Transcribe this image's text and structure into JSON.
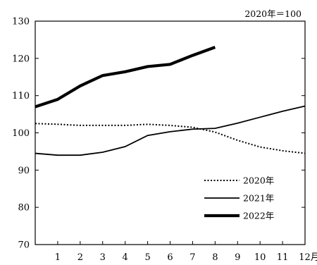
{
  "chart_data": {
    "type": "line",
    "unit_note": "2020年＝100",
    "x": [
      1,
      2,
      3,
      4,
      5,
      6,
      7,
      8,
      9,
      10,
      11,
      12
    ],
    "x_tick_labels": [
      "1",
      "2",
      "3",
      "4",
      "5",
      "6",
      "7",
      "8",
      "9",
      "10",
      "11",
      "12月"
    ],
    "xlim": [
      0,
      12
    ],
    "ylim": [
      70,
      130
    ],
    "y_ticks": [
      70,
      80,
      90,
      100,
      110,
      120,
      130
    ],
    "grid": false,
    "legend_position": "bottom-right",
    "series": [
      {
        "name": "2020年",
        "style": "dotted",
        "color": "#000000",
        "x": [
          0,
          1,
          2,
          3,
          4,
          5,
          6,
          7,
          8,
          9,
          10,
          11,
          12
        ],
        "values": [
          102.5,
          102.3,
          102.0,
          102.0,
          102.0,
          102.3,
          102.0,
          101.5,
          100.2,
          98.0,
          96.2,
          95.2,
          94.5
        ]
      },
      {
        "name": "2021年",
        "style": "solid",
        "color": "#000000",
        "x": [
          0,
          1,
          2,
          3,
          4,
          5,
          6,
          7,
          8,
          9,
          10,
          11,
          12
        ],
        "values": [
          94.5,
          94.0,
          94.0,
          94.8,
          96.3,
          99.3,
          100.3,
          101.0,
          101.2,
          102.6,
          104.2,
          105.8,
          107.2
        ]
      },
      {
        "name": "2022年",
        "style": "thick",
        "color": "#000000",
        "x": [
          0,
          1,
          2,
          3,
          4,
          5,
          6,
          7,
          8
        ],
        "values": [
          107.0,
          109.0,
          112.6,
          115.4,
          116.4,
          117.8,
          118.4,
          120.8,
          123.0
        ]
      }
    ]
  }
}
